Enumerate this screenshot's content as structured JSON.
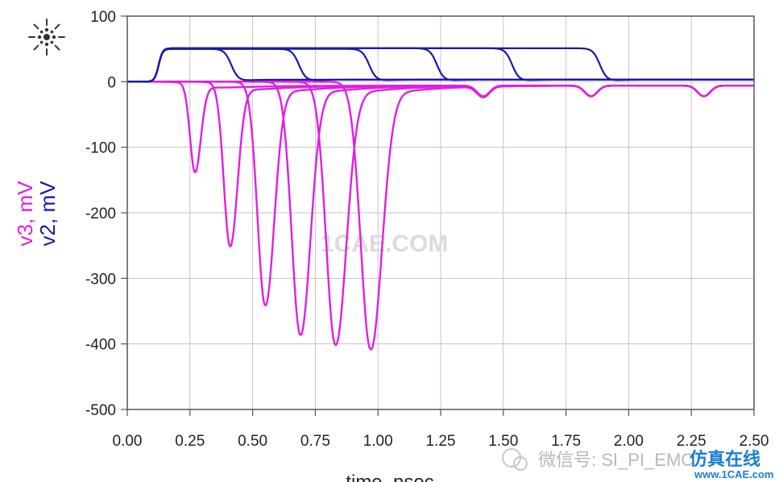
{
  "chart_data": {
    "type": "line",
    "xlabel": "time, nsec",
    "ylabels": [
      {
        "text": "v3, mV",
        "color": "#e020e0"
      },
      {
        "text": "v2, mV",
        "color": "#1a1aa8"
      }
    ],
    "xlim": [
      0,
      2.5
    ],
    "ylim": [
      -500,
      100
    ],
    "xticks": [
      "0.00",
      "0.25",
      "0.50",
      "0.75",
      "1.00",
      "1.25",
      "1.50",
      "1.75",
      "2.00",
      "2.25",
      "2.50"
    ],
    "yticks": [
      "100",
      "0",
      "-100",
      "-200",
      "-300",
      "-400",
      "-500"
    ],
    "grid": true,
    "colors": {
      "v2": "#1a1aa8",
      "v3": "#e020e0"
    },
    "series": [
      {
        "group": "v2",
        "rise": 0.1,
        "fall": 0.38,
        "high": 50
      },
      {
        "group": "v2",
        "rise": 0.1,
        "fall": 0.65,
        "high": 50
      },
      {
        "group": "v2",
        "rise": 0.1,
        "fall": 0.93,
        "high": 50
      },
      {
        "group": "v2",
        "rise": 0.1,
        "fall": 1.2,
        "high": 51
      },
      {
        "group": "v2",
        "rise": 0.1,
        "fall": 1.5,
        "high": 51
      },
      {
        "group": "v2",
        "rise": 0.1,
        "fall": 1.85,
        "high": 51
      },
      {
        "group": "v3",
        "center": 0.27,
        "peak": -135,
        "width": 0.022,
        "tail_dip": -18
      },
      {
        "group": "v3",
        "center": 0.41,
        "peak": -248,
        "width": 0.028,
        "tail_dip": -18
      },
      {
        "group": "v3",
        "center": 0.55,
        "peak": -338,
        "width": 0.034,
        "tail_dip": -18
      },
      {
        "group": "v3",
        "center": 0.69,
        "peak": -383,
        "width": 0.038,
        "tail_dip": -18
      },
      {
        "group": "v3",
        "center": 0.83,
        "peak": -398,
        "width": 0.041,
        "tail_dip": -18
      },
      {
        "group": "v3",
        "center": 0.97,
        "peak": -405,
        "width": 0.043,
        "tail_dip": -18
      }
    ],
    "v3_tail_dips": [
      1.42,
      1.85,
      2.3
    ]
  },
  "logo": {
    "icon": "starburst-logo-icon"
  },
  "watermarks": {
    "center": "1CAE.COM",
    "wechat": "微信号: SI_PI_EMC",
    "site_cn": "仿真在线",
    "site": "www.1CAE.com"
  }
}
